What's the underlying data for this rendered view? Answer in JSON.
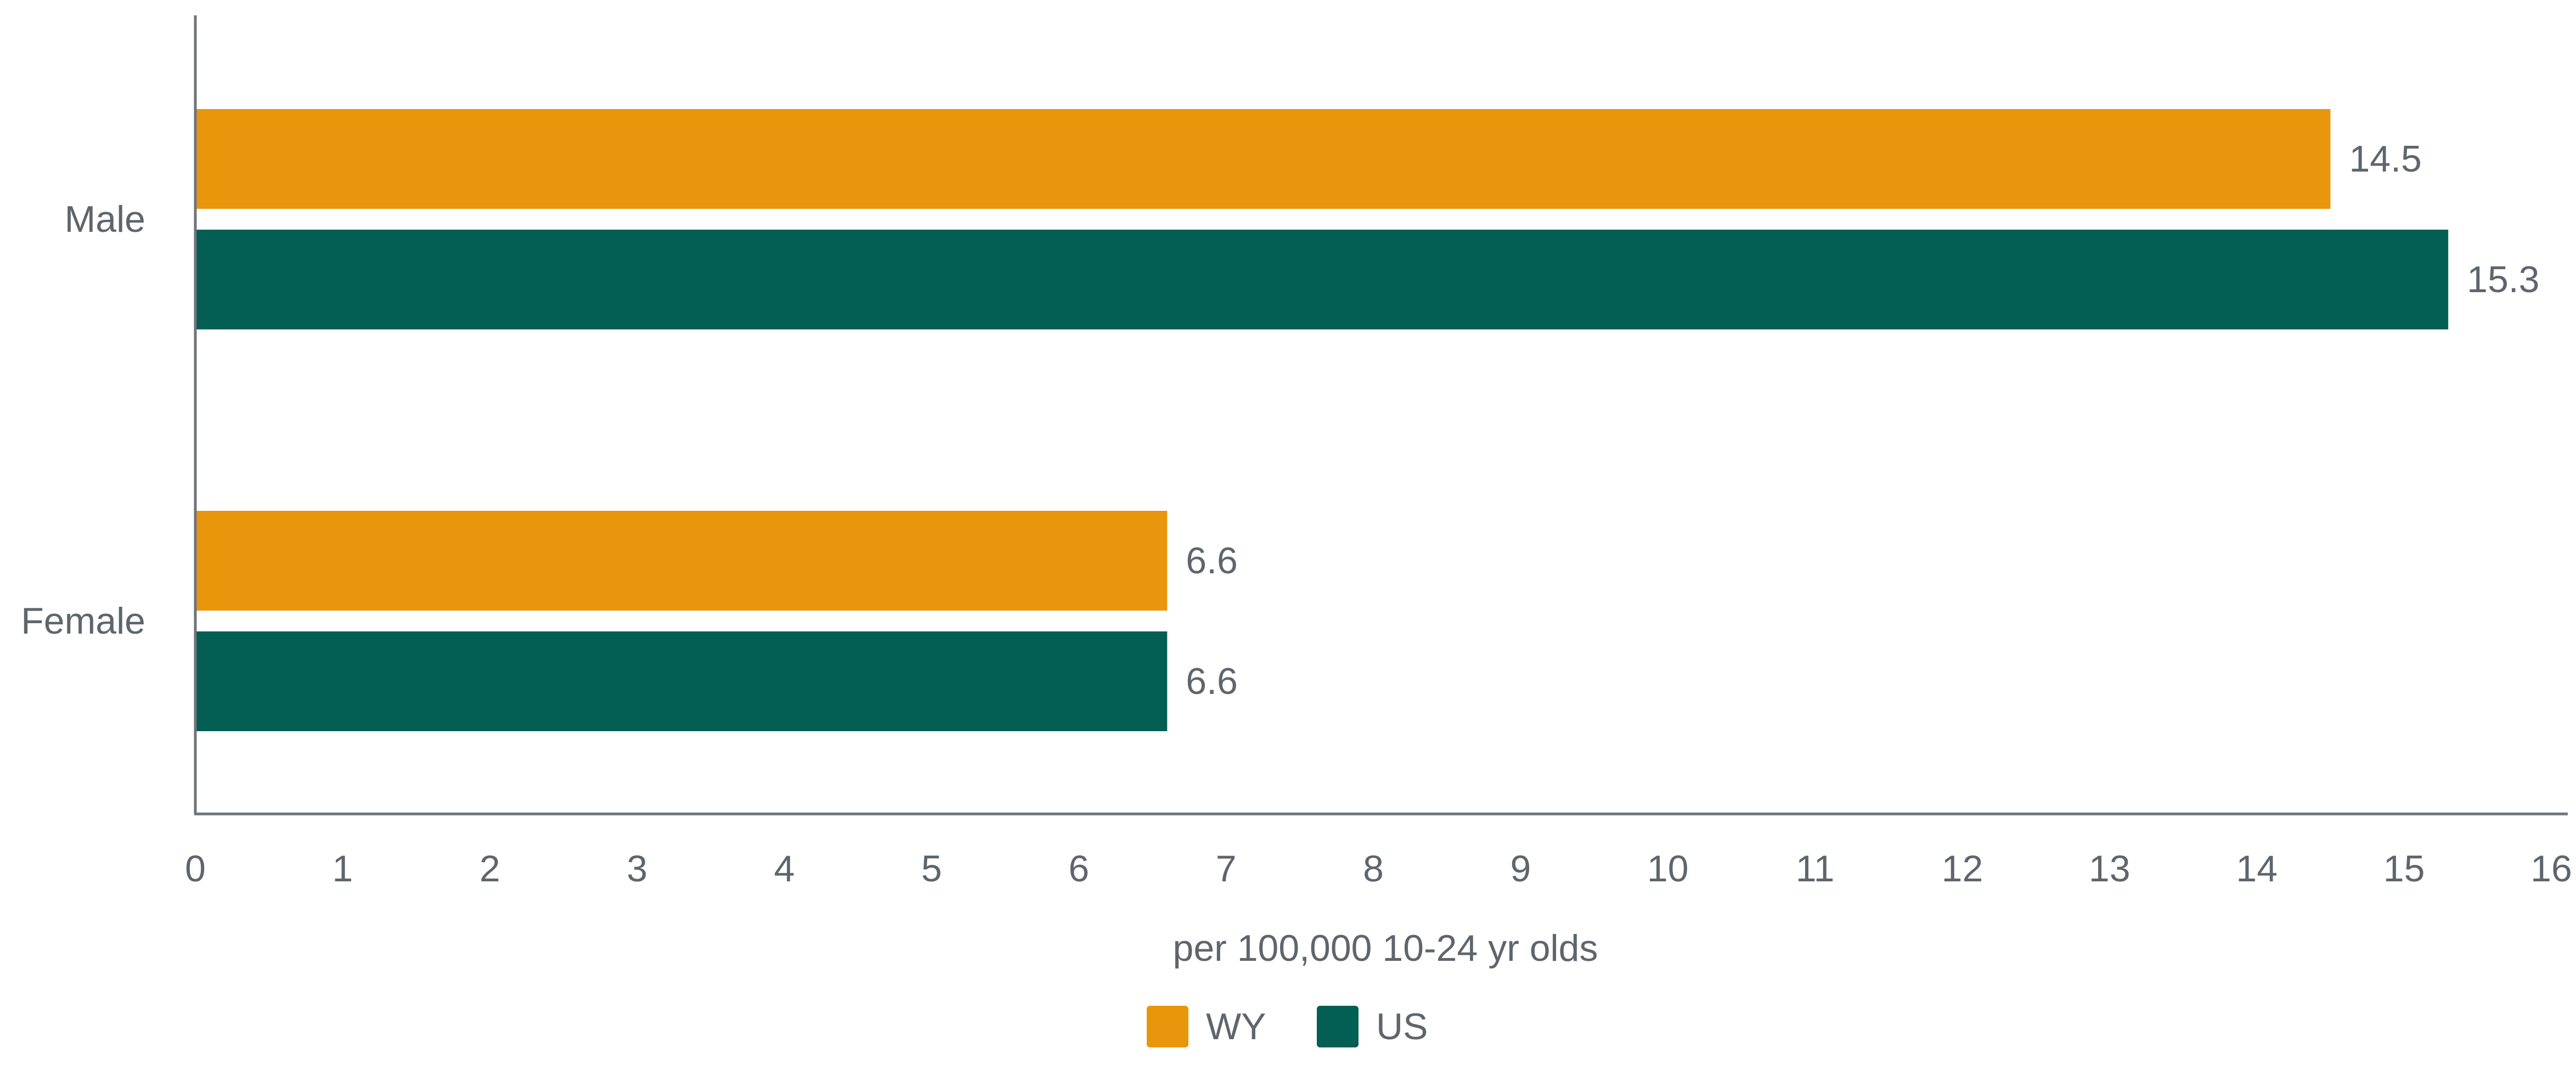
{
  "chart_data": {
    "type": "bar",
    "orientation": "horizontal",
    "categories": [
      "Male",
      "Female"
    ],
    "series": [
      {
        "name": "WY",
        "values": [
          14.5,
          6.6
        ],
        "color": "#E8960C"
      },
      {
        "name": "US",
        "values": [
          15.3,
          6.6
        ],
        "color": "#035E54"
      }
    ],
    "xlabel": "per 100,000 10-24 yr olds",
    "xlim": [
      0,
      16
    ],
    "xticks": [
      "0",
      "1",
      "2",
      "3",
      "4",
      "5",
      "6",
      "7",
      "8",
      "9",
      "10",
      "11",
      "12",
      "13",
      "14",
      "15",
      "16"
    ],
    "data_labels": [
      [
        "14.5",
        "15.3"
      ],
      [
        "6.6",
        "6.6"
      ]
    ],
    "legend": {
      "position": "bottom",
      "entries": [
        "WY",
        "US"
      ]
    },
    "grid": false
  },
  "colors": {
    "axis": "#6F747A",
    "text": "#5F656C"
  }
}
